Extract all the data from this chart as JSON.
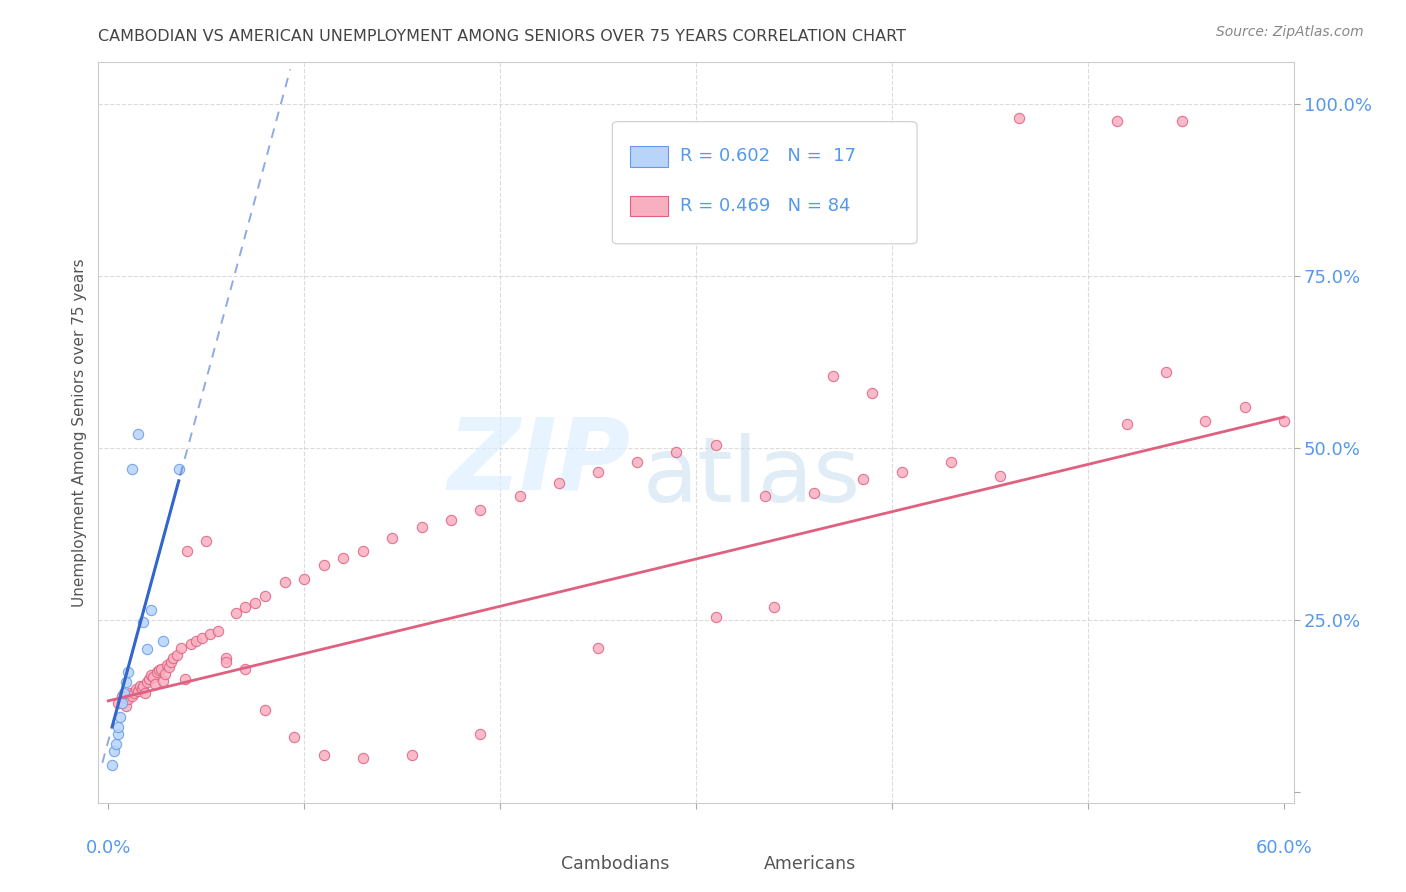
{
  "title": "CAMBODIAN VS AMERICAN UNEMPLOYMENT AMONG SENIORS OVER 75 YEARS CORRELATION CHART",
  "source": "Source: ZipAtlas.com",
  "ylabel": "Unemployment Among Seniors over 75 years",
  "legend_cam_r": "R = 0.602",
  "legend_cam_n": "N =  17",
  "legend_am_r": "R = 0.469",
  "legend_am_n": "N = 84",
  "cambodian_face": "#b8d4f8",
  "cambodian_edge": "#6699ee",
  "american_face": "#f8b0c0",
  "american_edge": "#e06080",
  "trend_cam_color": "#3366cc",
  "trend_am_color": "#e06080",
  "grid_color": "#cccccc",
  "bg_color": "#ffffff",
  "title_color": "#444444",
  "tick_label_color": "#5599ee",
  "xlim": [
    -0.005,
    0.605
  ],
  "ylim": [
    -0.015,
    1.06
  ],
  "ytick_positions": [
    0.0,
    0.25,
    0.5,
    0.75,
    1.0
  ],
  "ytick_labels": [
    "",
    "25.0%",
    "50.0%",
    "75.0%",
    "100.0%"
  ],
  "xtick_positions": [
    0.0,
    0.1,
    0.2,
    0.3,
    0.4,
    0.5,
    0.6
  ],
  "cam_x": [
    0.002,
    0.003,
    0.004,
    0.005,
    0.005,
    0.006,
    0.007,
    0.008,
    0.009,
    0.01,
    0.012,
    0.015,
    0.018,
    0.02,
    0.022,
    0.028,
    0.036
  ],
  "cam_y": [
    0.04,
    0.06,
    0.07,
    0.085,
    0.095,
    0.11,
    0.13,
    0.145,
    0.16,
    0.175,
    0.47,
    0.52,
    0.248,
    0.208,
    0.265,
    0.22,
    0.47
  ],
  "am_x": [
    0.005,
    0.007,
    0.009,
    0.01,
    0.011,
    0.012,
    0.013,
    0.014,
    0.015,
    0.016,
    0.017,
    0.018,
    0.019,
    0.02,
    0.021,
    0.022,
    0.023,
    0.024,
    0.025,
    0.026,
    0.027,
    0.028,
    0.029,
    0.03,
    0.031,
    0.032,
    0.033,
    0.035,
    0.037,
    0.039,
    0.042,
    0.045,
    0.048,
    0.052,
    0.056,
    0.06,
    0.065,
    0.07,
    0.075,
    0.08,
    0.09,
    0.1,
    0.11,
    0.12,
    0.13,
    0.145,
    0.16,
    0.175,
    0.19,
    0.21,
    0.23,
    0.25,
    0.27,
    0.29,
    0.31,
    0.335,
    0.36,
    0.385,
    0.37,
    0.405,
    0.43,
    0.455,
    0.465,
    0.515,
    0.548,
    0.39,
    0.52,
    0.54,
    0.56,
    0.58,
    0.6,
    0.155,
    0.31,
    0.34,
    0.19,
    0.25,
    0.04,
    0.05,
    0.06,
    0.07,
    0.08,
    0.095,
    0.11,
    0.13
  ],
  "am_y": [
    0.13,
    0.14,
    0.125,
    0.135,
    0.145,
    0.14,
    0.145,
    0.15,
    0.148,
    0.155,
    0.15,
    0.155,
    0.145,
    0.16,
    0.165,
    0.17,
    0.168,
    0.158,
    0.175,
    0.178,
    0.18,
    0.162,
    0.172,
    0.185,
    0.182,
    0.19,
    0.195,
    0.2,
    0.21,
    0.165,
    0.215,
    0.22,
    0.225,
    0.23,
    0.235,
    0.195,
    0.26,
    0.27,
    0.275,
    0.285,
    0.305,
    0.31,
    0.33,
    0.34,
    0.35,
    0.37,
    0.385,
    0.395,
    0.41,
    0.43,
    0.45,
    0.465,
    0.48,
    0.495,
    0.505,
    0.43,
    0.435,
    0.455,
    0.605,
    0.465,
    0.48,
    0.46,
    0.98,
    0.975,
    0.975,
    0.58,
    0.535,
    0.61,
    0.54,
    0.56,
    0.54,
    0.055,
    0.255,
    0.27,
    0.085,
    0.21,
    0.35,
    0.365,
    0.19,
    0.18,
    0.12,
    0.08,
    0.055,
    0.05
  ],
  "am_trend_x0": 0.0,
  "am_trend_y0": 0.133,
  "am_trend_x1": 0.6,
  "am_trend_y1": 0.545,
  "cam_trend_solid_x0": 0.002,
  "cam_trend_solid_x1": 0.036,
  "cam_trend_dash_x0": -0.003,
  "cam_trend_dash_x1": 0.2,
  "cam_trend_slope": 18.5,
  "cam_trend_intercept": 0.005
}
